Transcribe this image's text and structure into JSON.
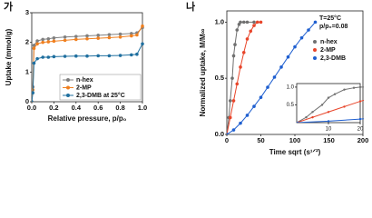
{
  "chart_data": [
    {
      "type": "line",
      "panel_label": "가",
      "ylabel": "Uptake (mmol/g)",
      "xlabel": "Relative pressure, p/p₀",
      "xlim": [
        0,
        1.0
      ],
      "xticks": [
        {
          "value": 0,
          "label": "0.0"
        },
        0.2,
        0.4,
        0.6,
        0.8,
        {
          "value": 1,
          "label": "1.0"
        }
      ],
      "ylim": [
        0,
        3
      ],
      "yticks": [
        0,
        1,
        2,
        3
      ],
      "legend": "lower right",
      "series": [
        {
          "name": "n-hex",
          "color": "#808080",
          "x": [
            0,
            0.01,
            0.02,
            0.05,
            0.1,
            0.15,
            0.2,
            0.3,
            0.4,
            0.5,
            0.6,
            0.7,
            0.8,
            0.9,
            0.95,
            1.0
          ],
          "values": [
            0,
            0.5,
            1.9,
            2.05,
            2.1,
            2.12,
            2.15,
            2.18,
            2.2,
            2.22,
            2.24,
            2.26,
            2.28,
            2.3,
            2.32,
            2.5
          ]
        },
        {
          "name": "2-MP",
          "color": "#f08020",
          "x": [
            0,
            0.01,
            0.02,
            0.05,
            0.1,
            0.15,
            0.2,
            0.3,
            0.4,
            0.5,
            0.6,
            0.7,
            0.8,
            0.9,
            0.95,
            1.0
          ],
          "values": [
            0,
            0.4,
            1.8,
            1.95,
            2.0,
            2.02,
            2.04,
            2.07,
            2.1,
            2.12,
            2.14,
            2.16,
            2.18,
            2.22,
            2.25,
            2.55
          ]
        },
        {
          "name": "2,3-DMB at 25°C",
          "color": "#1f6f9f",
          "x": [
            0,
            0.01,
            0.02,
            0.05,
            0.1,
            0.15,
            0.2,
            0.3,
            0.4,
            0.5,
            0.6,
            0.7,
            0.8,
            0.9,
            0.95,
            1.0
          ],
          "values": [
            0,
            0.3,
            1.3,
            1.45,
            1.5,
            1.5,
            1.52,
            1.53,
            1.54,
            1.54,
            1.55,
            1.55,
            1.56,
            1.58,
            1.6,
            1.95
          ]
        }
      ]
    },
    {
      "type": "line",
      "panel_label": "나",
      "ylabel": "Normalized uptake, M/M∞",
      "xlabel": "Time sqrt (s¹ᐟ²)",
      "annotations": [
        "T=25°C",
        "p/p₀=0.08"
      ],
      "xlim": [
        0,
        200
      ],
      "xticks": [
        0,
        50,
        100,
        150,
        200
      ],
      "ylim": [
        0,
        1.1
      ],
      "yticks": [
        {
          "value": 0,
          "label": "0.0"
        },
        0.5,
        {
          "value": 1,
          "label": "1.0"
        }
      ],
      "legend": "upper right",
      "inset": {
        "xlim": [
          0,
          20
        ],
        "ylim": [
          0,
          1.1
        ],
        "xticks": [
          10,
          20
        ],
        "yticks": [
          0.5,
          {
            "value": 1,
            "label": "1.0"
          }
        ]
      },
      "series": [
        {
          "name": "n-hex",
          "color": "#707070",
          "x": [
            0,
            3,
            5,
            8,
            10,
            12,
            15,
            18,
            20,
            25,
            30,
            40
          ],
          "values": [
            0,
            0.15,
            0.3,
            0.5,
            0.7,
            0.8,
            0.93,
            0.98,
            1.0,
            1.0,
            1.0,
            1.0
          ]
        },
        {
          "name": "2-MP",
          "color": "#e8452a",
          "x": [
            0,
            5,
            10,
            15,
            20,
            25,
            30,
            35,
            40,
            45,
            50
          ],
          "values": [
            0,
            0.15,
            0.3,
            0.45,
            0.6,
            0.73,
            0.85,
            0.92,
            0.97,
            1.0,
            1.0
          ]
        },
        {
          "name": "2,3-DMB",
          "color": "#1f5fd0",
          "x": [
            0,
            10,
            20,
            30,
            40,
            50,
            60,
            70,
            80,
            90,
            100,
            110,
            120,
            130
          ],
          "values": [
            0,
            0.04,
            0.1,
            0.17,
            0.25,
            0.33,
            0.42,
            0.51,
            0.6,
            0.69,
            0.78,
            0.86,
            0.93,
            1.0
          ]
        }
      ]
    }
  ]
}
